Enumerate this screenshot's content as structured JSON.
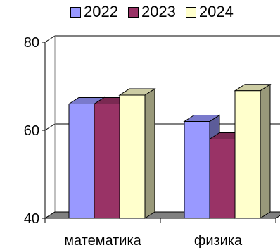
{
  "chart_data": {
    "type": "bar",
    "categories": [
      "математика",
      "физика"
    ],
    "series": [
      {
        "name": "2022",
        "values": [
          66,
          62
        ],
        "color": "#9999ff"
      },
      {
        "name": "2023",
        "values": [
          66,
          58
        ],
        "color": "#993366"
      },
      {
        "name": "2024",
        "values": [
          68,
          69
        ],
        "color": "#ffffcc"
      }
    ],
    "ylim": [
      40,
      80
    ],
    "yticks": [
      40,
      60,
      80
    ],
    "legend_position": "top",
    "grid": true,
    "style": "3d-bars"
  }
}
